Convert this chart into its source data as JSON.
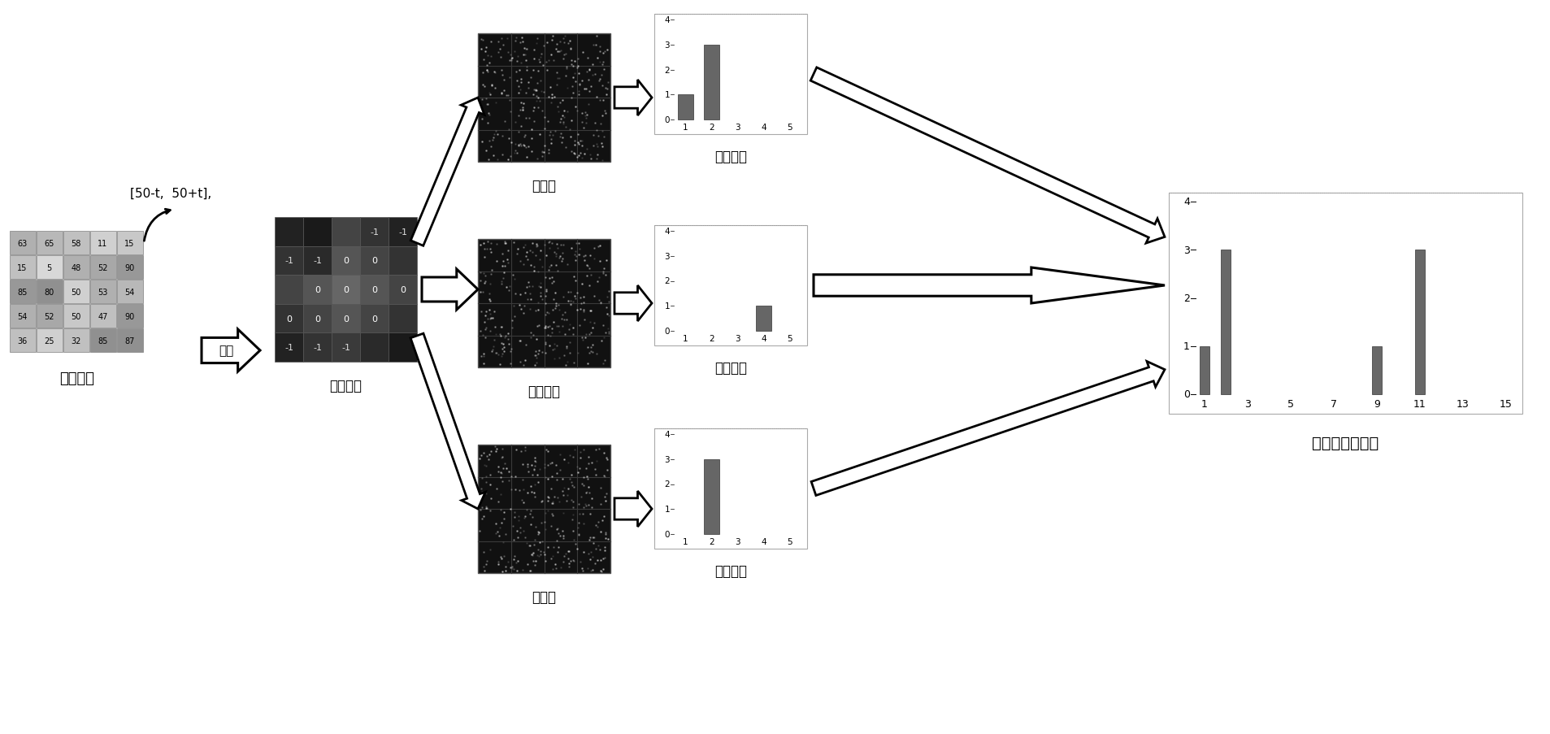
{
  "grid_data": [
    [
      63,
      65,
      58,
      11,
      15
    ],
    [
      15,
      5,
      48,
      52,
      90
    ],
    [
      85,
      80,
      50,
      53,
      54
    ],
    [
      54,
      52,
      50,
      47,
      90
    ],
    [
      36,
      25,
      32,
      85,
      87
    ]
  ],
  "grid_label": "领域集合",
  "mode_matrix_label": "模式矩阵",
  "quantize_label": "[50-t,  50+t],",
  "quantize_sublabel": "量化",
  "pos_matrix_label": "正矩阵",
  "eq_matrix_label": "等价矩阵",
  "neg_matrix_label": "负矩阵",
  "hist1_values": [
    1,
    3,
    0,
    0,
    0
  ],
  "hist1_label": "子直方图",
  "hist2_values": [
    0,
    0,
    0,
    1,
    0
  ],
  "hist2_label": "子直方图",
  "hist3_values": [
    0,
    3,
    0,
    0,
    0
  ],
  "hist3_label": "子直方图",
  "final_hist_values": [
    1,
    3,
    0,
    0,
    0,
    0,
    0,
    0,
    1,
    0,
    3,
    0,
    0,
    0,
    0
  ],
  "final_hist_label": "局部模式直方图",
  "final_hist_xticks": [
    1,
    3,
    5,
    7,
    9,
    11,
    13,
    15
  ],
  "mode_vals": [
    [
      "",
      "",
      "",
      "-1",
      "-1"
    ],
    [
      "-1",
      "-1",
      "0",
      "0",
      ""
    ],
    [
      "",
      "0",
      "0",
      "0",
      "0"
    ],
    [
      "0",
      "0",
      "0",
      "0",
      ""
    ],
    [
      "-1",
      "-1",
      "-1",
      "",
      ""
    ]
  ]
}
